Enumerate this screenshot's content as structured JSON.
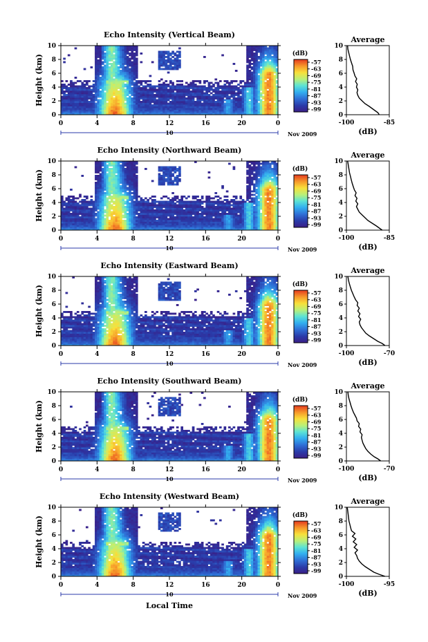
{
  "chart_data": [
    {
      "type": "heatmap",
      "title": "Echo Intensity (Vertical Beam)",
      "ylabel": "Height (km)",
      "yticks": [
        "0",
        "2",
        "4",
        "6",
        "8",
        "10"
      ],
      "xticks": [
        "0",
        "4",
        "8",
        "12",
        "16",
        "20",
        "0"
      ],
      "date_mark": "10",
      "date_label": "Nov 2009",
      "colorbar_unit": "(dB)",
      "colorbar_ticks": [
        "-57",
        "-63",
        "-69",
        "-75",
        "-81",
        "-87",
        "-93",
        "-99"
      ],
      "avg_title": "Average",
      "avg_xticks": [
        "-100",
        "-85"
      ],
      "avg_xlim": [
        -100,
        -85
      ],
      "avg_yticks": [
        "0",
        "2",
        "4",
        "6",
        "8",
        "10"
      ],
      "avg_xlabel": "(dB)",
      "avg_profile": [
        [
          -88.5,
          0
        ],
        [
          -89,
          0.3
        ],
        [
          -90,
          0.6
        ],
        [
          -91,
          0.9
        ],
        [
          -92,
          1.2
        ],
        [
          -93.5,
          1.6
        ],
        [
          -94.5,
          2.0
        ],
        [
          -95.5,
          2.4
        ],
        [
          -96,
          2.8
        ],
        [
          -96.3,
          3.2
        ],
        [
          -96,
          3.6
        ],
        [
          -96.5,
          4.0
        ],
        [
          -96.2,
          4.4
        ],
        [
          -96.8,
          4.8
        ],
        [
          -96.4,
          5.2
        ],
        [
          -97,
          5.6
        ],
        [
          -97.3,
          6.0
        ],
        [
          -97.7,
          6.5
        ],
        [
          -97.8,
          7.0
        ],
        [
          -98.2,
          7.5
        ],
        [
          -98.6,
          8.0
        ],
        [
          -98.9,
          8.5
        ],
        [
          -99.2,
          9.0
        ],
        [
          -99.5,
          9.5
        ],
        [
          -99.6,
          10
        ]
      ]
    },
    {
      "type": "heatmap",
      "title": "Echo Intensity (Northward Beam)",
      "ylabel": "Height (km)",
      "yticks": [
        "0",
        "2",
        "4",
        "6",
        "8",
        "10"
      ],
      "xticks": [
        "0",
        "4",
        "8",
        "12",
        "16",
        "20",
        "0"
      ],
      "date_mark": "10",
      "date_label": "Nov 2009",
      "colorbar_unit": "(dB)",
      "colorbar_ticks": [
        "-57",
        "-63",
        "-69",
        "-75",
        "-81",
        "-87",
        "-93",
        "-99"
      ],
      "avg_title": "Average",
      "avg_xticks": [
        "-100",
        "-85"
      ],
      "avg_xlim": [
        -100,
        -85
      ],
      "avg_yticks": [
        "0",
        "2",
        "4",
        "6",
        "8",
        "10"
      ],
      "avg_xlabel": "(dB)",
      "avg_profile": [
        [
          -87.5,
          0
        ],
        [
          -88.5,
          0.3
        ],
        [
          -89.5,
          0.6
        ],
        [
          -91,
          1.0
        ],
        [
          -92.5,
          1.4
        ],
        [
          -93.5,
          1.8
        ],
        [
          -94.5,
          2.2
        ],
        [
          -95.5,
          2.6
        ],
        [
          -96,
          3.0
        ],
        [
          -96.5,
          3.4
        ],
        [
          -96,
          3.8
        ],
        [
          -96.7,
          4.2
        ],
        [
          -96.3,
          4.6
        ],
        [
          -97,
          5.0
        ],
        [
          -96.6,
          5.4
        ],
        [
          -97.2,
          5.8
        ],
        [
          -97.6,
          6.3
        ],
        [
          -98,
          6.8
        ],
        [
          -98.3,
          7.3
        ],
        [
          -98.6,
          7.8
        ],
        [
          -98.9,
          8.3
        ],
        [
          -99.1,
          8.8
        ],
        [
          -99.3,
          9.3
        ],
        [
          -99.5,
          9.8
        ],
        [
          -99.6,
          10
        ]
      ]
    },
    {
      "type": "heatmap",
      "title": "Echo Intensity (Eastward Beam)",
      "ylabel": "Height (km)",
      "yticks": [
        "0",
        "2",
        "4",
        "6",
        "8",
        "10"
      ],
      "xticks": [
        "0",
        "4",
        "8",
        "12",
        "16",
        "20",
        "0"
      ],
      "date_mark": "10",
      "date_label": "Nov 2009",
      "colorbar_unit": "(dB)",
      "colorbar_ticks": [
        "-57",
        "-63",
        "-69",
        "-75",
        "-81",
        "-87",
        "-93",
        "-99"
      ],
      "avg_title": "Average",
      "avg_xticks": [
        "-100",
        "-70"
      ],
      "avg_xlim": [
        -100,
        -70
      ],
      "avg_yticks": [
        "0",
        "2",
        "4",
        "6",
        "8",
        "10"
      ],
      "avg_xlabel": "(dB)",
      "avg_profile": [
        [
          -73,
          0
        ],
        [
          -75,
          0.3
        ],
        [
          -78,
          0.6
        ],
        [
          -81,
          1.0
        ],
        [
          -84,
          1.4
        ],
        [
          -86.5,
          1.8
        ],
        [
          -88,
          2.2
        ],
        [
          -89.5,
          2.6
        ],
        [
          -90.5,
          3.0
        ],
        [
          -91,
          3.4
        ],
        [
          -90,
          3.8
        ],
        [
          -91.5,
          4.2
        ],
        [
          -90.5,
          4.6
        ],
        [
          -92,
          5.0
        ],
        [
          -91,
          5.4
        ],
        [
          -92.5,
          5.8
        ],
        [
          -92,
          6.2
        ],
        [
          -93.5,
          6.6
        ],
        [
          -94.5,
          7.0
        ],
        [
          -95.5,
          7.5
        ],
        [
          -96.5,
          8.0
        ],
        [
          -97.3,
          8.5
        ],
        [
          -98,
          9.0
        ],
        [
          -98.6,
          9.5
        ],
        [
          -99,
          10
        ]
      ]
    },
    {
      "type": "heatmap",
      "title": "Echo Intensity (Southward Beam)",
      "ylabel": "Height (km)",
      "yticks": [
        "0",
        "2",
        "4",
        "6",
        "8",
        "10"
      ],
      "xticks": [
        "0",
        "4",
        "8",
        "12",
        "16",
        "20",
        "0"
      ],
      "date_mark": "10",
      "date_label": "Nov 2009",
      "colorbar_unit": "(dB)",
      "colorbar_ticks": [
        "-57",
        "-63",
        "-69",
        "-75",
        "-81",
        "-87",
        "-93",
        "-99"
      ],
      "avg_title": "Average",
      "avg_xticks": [
        "-100",
        "-70"
      ],
      "avg_xlim": [
        -100,
        -70
      ],
      "avg_yticks": [
        "0",
        "2",
        "4",
        "6",
        "8",
        "10"
      ],
      "avg_xlabel": "(dB)",
      "avg_profile": [
        [
          -76,
          0
        ],
        [
          -78,
          0.3
        ],
        [
          -80.5,
          0.6
        ],
        [
          -83,
          1.0
        ],
        [
          -85,
          1.4
        ],
        [
          -86.5,
          1.8
        ],
        [
          -87.5,
          2.2
        ],
        [
          -88.5,
          2.6
        ],
        [
          -89,
          3.0
        ],
        [
          -89.5,
          3.4
        ],
        [
          -89,
          3.8
        ],
        [
          -90.5,
          4.2
        ],
        [
          -90,
          4.6
        ],
        [
          -91.5,
          5.0
        ],
        [
          -91,
          5.4
        ],
        [
          -92.5,
          5.8
        ],
        [
          -93,
          6.2
        ],
        [
          -94,
          6.6
        ],
        [
          -95,
          7.0
        ],
        [
          -96,
          7.5
        ],
        [
          -96.8,
          8.0
        ],
        [
          -97.5,
          8.5
        ],
        [
          -98.2,
          9.0
        ],
        [
          -98.7,
          9.5
        ],
        [
          -99,
          10
        ]
      ]
    },
    {
      "type": "heatmap",
      "title": "Echo Intensity (Westward Beam)",
      "ylabel": "Height (km)",
      "yticks": [
        "0",
        "2",
        "4",
        "6",
        "8",
        "10"
      ],
      "xticks": [
        "0",
        "4",
        "8",
        "12",
        "16",
        "20",
        "0"
      ],
      "xlabel": "Local Time",
      "date_mark": "10",
      "date_label": "Nov 2009",
      "colorbar_unit": "(dB)",
      "colorbar_ticks": [
        "-57",
        "-63",
        "-69",
        "-75",
        "-81",
        "-87",
        "-93",
        "-99"
      ],
      "avg_title": "Average",
      "avg_xticks": [
        "-100",
        "-95"
      ],
      "avg_xlim": [
        -100,
        -95
      ],
      "avg_yticks": [
        "0",
        "2",
        "4",
        "6",
        "8",
        "10"
      ],
      "avg_xlabel": "(dB)",
      "avg_profile": [
        [
          -95.5,
          0
        ],
        [
          -96.2,
          0.3
        ],
        [
          -96.8,
          0.6
        ],
        [
          -97.3,
          1.0
        ],
        [
          -97.8,
          1.4
        ],
        [
          -98.2,
          1.8
        ],
        [
          -98.5,
          2.2
        ],
        [
          -98.7,
          2.6
        ],
        [
          -98.8,
          3.0
        ],
        [
          -99,
          3.4
        ],
        [
          -98.7,
          3.8
        ],
        [
          -99.1,
          4.2
        ],
        [
          -98.8,
          4.6
        ],
        [
          -99.2,
          5.0
        ],
        [
          -98.9,
          5.4
        ],
        [
          -99.3,
          5.8
        ],
        [
          -99,
          6.2
        ],
        [
          -99.4,
          6.6
        ],
        [
          -99.5,
          7.0
        ],
        [
          -99.6,
          7.5
        ],
        [
          -99.7,
          8.0
        ],
        [
          -99.75,
          8.5
        ],
        [
          -99.8,
          9.0
        ],
        [
          -99.85,
          9.5
        ],
        [
          -99.9,
          10
        ]
      ]
    }
  ]
}
